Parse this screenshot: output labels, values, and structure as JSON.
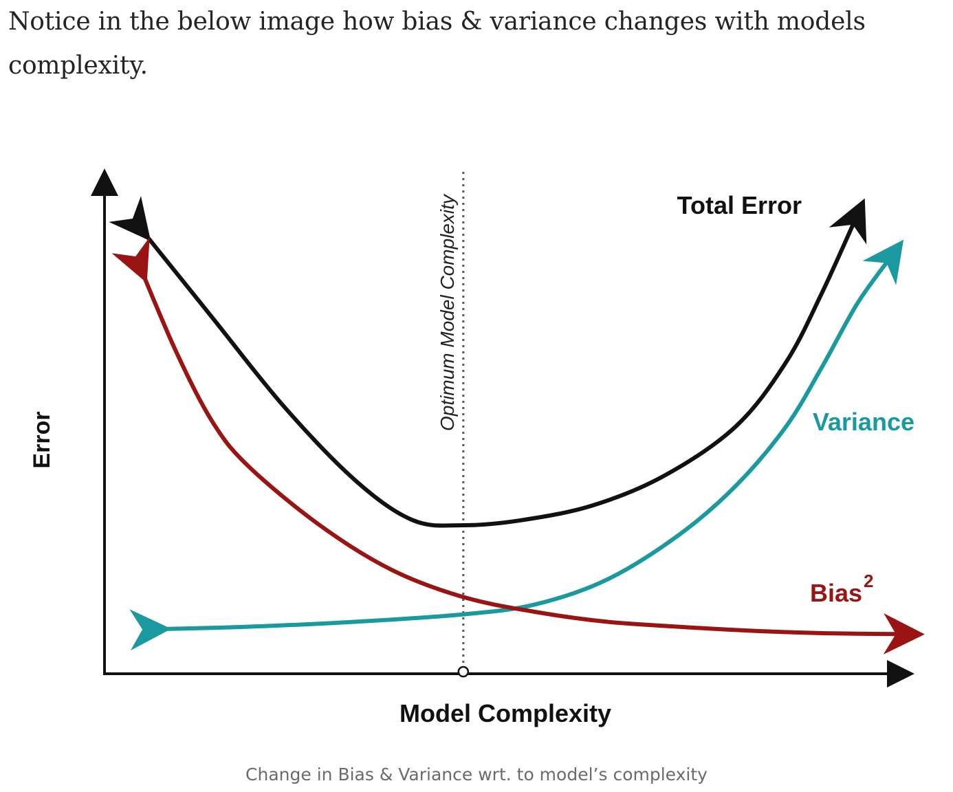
{
  "article": {
    "intro_text": "Notice in the below image how bias & variance changes with models complexity.",
    "caption": "Change in Bias & Variance wrt. to model’s complexity"
  },
  "colors": {
    "total_error": "#111111",
    "variance": "#1a9a9e",
    "bias": "#9b1414",
    "axes": "#111111",
    "optimum_line": "#555555"
  },
  "chart_data": {
    "type": "line",
    "xlabel": "Model Complexity",
    "ylabel": "Error",
    "optimum_label": "Optimum Model Complexity",
    "optimum_x": 5,
    "xlim": [
      0,
      11
    ],
    "ylim": [
      0,
      10
    ],
    "grid": false,
    "series": [
      {
        "name": "Total Error",
        "key": "total_error",
        "x": [
          0.5,
          1.5,
          2.5,
          3.5,
          4.3,
          5.0,
          5.8,
          6.8,
          7.8,
          8.8,
          9.5,
          10.0,
          10.5
        ],
        "values": [
          9.0,
          7.2,
          5.4,
          3.9,
          3.1,
          3.0,
          3.1,
          3.4,
          4.0,
          5.0,
          6.3,
          7.7,
          9.3
        ]
      },
      {
        "name": "Variance",
        "key": "variance",
        "x": [
          0.7,
          2.0,
          3.5,
          5.0,
          6.0,
          7.0,
          8.0,
          8.8,
          9.5,
          10.0,
          10.5,
          11.0
        ],
        "values": [
          0.9,
          0.95,
          1.05,
          1.2,
          1.4,
          1.9,
          2.8,
          3.8,
          5.0,
          6.2,
          7.5,
          8.5
        ]
      },
      {
        "name": "Bias",
        "key": "bias",
        "superscript": "2",
        "x": [
          0.5,
          1.0,
          1.5,
          2.0,
          3.0,
          4.0,
          5.0,
          6.0,
          7.0,
          8.0,
          9.0,
          10.0,
          11.2
        ],
        "values": [
          8.2,
          6.5,
          5.1,
          4.2,
          3.0,
          2.1,
          1.55,
          1.25,
          1.05,
          0.95,
          0.87,
          0.82,
          0.8
        ]
      }
    ]
  }
}
